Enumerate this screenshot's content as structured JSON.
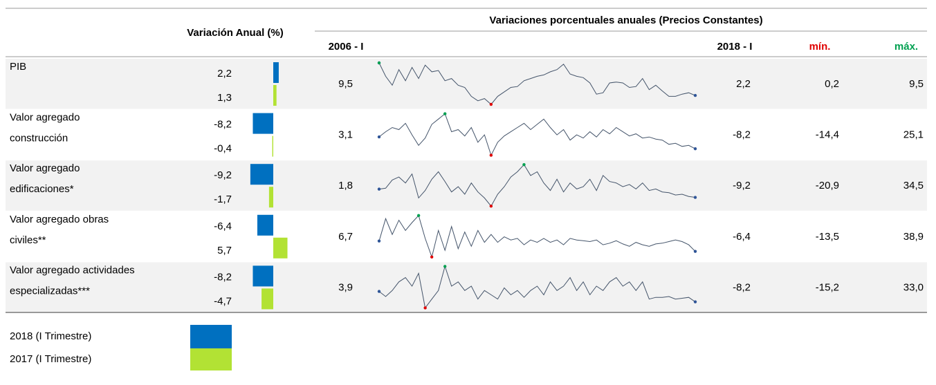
{
  "header": {
    "annual": "Variación Anual (%)",
    "title": "Variaciones porcentuales anuales  (Precios Constantes)",
    "start": "2006 - I",
    "end": "2018 - I",
    "min": "mín.",
    "max": "máx."
  },
  "rows": [
    {
      "label": [
        "PIB"
      ],
      "v2018": {
        "value": 2.2,
        "label": "2,2"
      },
      "v2017": {
        "value": 1.3,
        "label": "1,3"
      },
      "start": {
        "value": 9.5,
        "label": "9,5"
      },
      "end": {
        "value": 2.2,
        "label": "2,2"
      },
      "min": {
        "value": 0.2,
        "label": "0,2"
      },
      "max": {
        "value": 9.5,
        "label": "9,5"
      },
      "series": [
        9.5,
        6.5,
        4.5,
        8.0,
        5.5,
        8.5,
        6.0,
        9.0,
        7.5,
        7.8,
        5.5,
        6.0,
        4.5,
        4.0,
        2.0,
        1.0,
        1.5,
        0.2,
        2.0,
        3.0,
        4.0,
        4.2,
        5.5,
        6.0,
        6.5,
        6.8,
        7.5,
        8.0,
        9.2,
        7.0,
        6.5,
        6.2,
        5.0,
        2.5,
        2.8,
        5.0,
        5.2,
        5.0,
        4.0,
        4.2,
        6.0,
        3.5,
        4.5,
        3.2,
        2.0,
        2.0,
        2.5,
        2.8,
        2.2
      ]
    },
    {
      "label": [
        "Valor agregado",
        "construcción"
      ],
      "v2018": {
        "value": -8.2,
        "label": "-8,2"
      },
      "v2017": {
        "value": -0.4,
        "label": "-0,4"
      },
      "start": {
        "value": 3.1,
        "label": "3,1"
      },
      "end": {
        "value": -8.2,
        "label": "-8,2"
      },
      "min": {
        "value": -14.4,
        "label": "-14,4"
      },
      "max": {
        "value": 25.1,
        "label": "25,1"
      },
      "series": [
        3.1,
        8,
        12,
        10,
        16,
        5,
        -5,
        2,
        15,
        20,
        25.1,
        8,
        10,
        4,
        12,
        -2,
        5,
        -14.4,
        -2,
        4,
        8,
        12,
        16,
        10,
        15,
        20,
        12,
        5,
        10,
        0,
        5,
        2,
        8,
        3,
        10,
        6,
        12,
        8,
        4,
        6,
        2,
        3,
        1,
        0,
        -4,
        -3,
        -6,
        -5,
        -8.2
      ]
    },
    {
      "label": [
        "Valor agregado",
        "edificaciones*"
      ],
      "v2018": {
        "value": -9.2,
        "label": "-9,2"
      },
      "v2017": {
        "value": -1.7,
        "label": "-1,7"
      },
      "start": {
        "value": 1.8,
        "label": "1,8"
      },
      "end": {
        "value": -9.2,
        "label": "-9,2"
      },
      "min": {
        "value": -20.9,
        "label": "-20,9"
      },
      "max": {
        "value": 34.5,
        "label": "34,5"
      },
      "series": [
        1.8,
        3,
        14,
        18,
        10,
        22,
        -10,
        0,
        15,
        25,
        12,
        -2,
        5,
        -5,
        10,
        -2,
        -10,
        -20.9,
        -5,
        5,
        18,
        25,
        34.5,
        20,
        25,
        10,
        0,
        15,
        -2,
        10,
        2,
        5,
        15,
        0,
        20,
        12,
        10,
        5,
        8,
        2,
        10,
        0,
        2,
        -2,
        -3,
        -6,
        -5,
        -8,
        -9.2
      ]
    },
    {
      "label": [
        "Valor agregado obras",
        "civiles**"
      ],
      "v2018": {
        "value": -6.4,
        "label": "-6,4"
      },
      "v2017": {
        "value": 5.7,
        "label": "5,7"
      },
      "start": {
        "value": 6.7,
        "label": "6,7"
      },
      "end": {
        "value": -6.4,
        "label": "-6,4"
      },
      "min": {
        "value": -13.5,
        "label": "-13,5"
      },
      "max": {
        "value": 38.9,
        "label": "38,9"
      },
      "series": [
        6.7,
        35,
        15,
        33,
        20,
        30,
        38.9,
        10,
        -13.5,
        20,
        -5,
        25,
        -3,
        18,
        0,
        20,
        5,
        15,
        5,
        12,
        8,
        10,
        2,
        8,
        5,
        10,
        5,
        8,
        2,
        10,
        8,
        7,
        6,
        8,
        2,
        4,
        7,
        3,
        0,
        5,
        2,
        0,
        3,
        4,
        6,
        8,
        6,
        2,
        -6.4
      ]
    },
    {
      "label": [
        "Valor agregado actividades",
        "especializadas***"
      ],
      "v2018": {
        "value": -8.2,
        "label": "-8,2"
      },
      "v2017": {
        "value": -4.7,
        "label": "-4,7"
      },
      "start": {
        "value": 3.9,
        "label": "3,9"
      },
      "end": {
        "value": -8.2,
        "label": "-8,2"
      },
      "min": {
        "value": -15.2,
        "label": "-15,2"
      },
      "max": {
        "value": 33.0,
        "label": "33,0"
      },
      "series": [
        3.9,
        -2,
        5,
        15,
        20,
        10,
        25,
        -15.2,
        -5,
        5,
        33.0,
        10,
        15,
        5,
        10,
        -5,
        5,
        0,
        -5,
        8,
        0,
        5,
        -3,
        5,
        10,
        0,
        15,
        5,
        10,
        20,
        5,
        15,
        0,
        10,
        5,
        15,
        20,
        10,
        15,
        5,
        15,
        -5,
        -3,
        -3,
        -2,
        -5,
        -4,
        -3,
        -8.2
      ]
    }
  ],
  "legend": [
    {
      "label": "2018 (I Trimestre)",
      "color": "#0070c0"
    },
    {
      "label": "2017 (I Trimestre)",
      "color": "#b2e234"
    }
  ],
  "colors": {
    "line": "#44546a",
    "min": "#e00000",
    "max": "#00a050",
    "ends": "#2f5597",
    "band": "#f2f2f2"
  }
}
